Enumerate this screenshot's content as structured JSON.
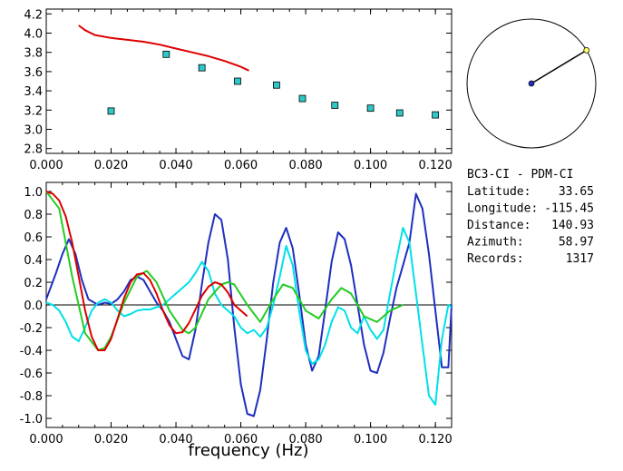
{
  "chart_data": [
    {
      "type": "scatter",
      "panel": "top",
      "xlim": [
        0.0,
        0.125
      ],
      "ylim": [
        2.75,
        4.25
      ],
      "x_ticks": [
        "0.000",
        "0.020",
        "0.040",
        "0.060",
        "0.080",
        "0.100",
        "0.120"
      ],
      "y_ticks": [
        "2.8",
        "3.0",
        "3.2",
        "3.4",
        "3.6",
        "3.8",
        "4.0",
        "4.2"
      ],
      "grid": false,
      "series": [
        {
          "type": "line",
          "color": "#dd0000",
          "x": [
            0.01,
            0.012,
            0.015,
            0.02,
            0.025,
            0.03,
            0.035,
            0.04,
            0.045,
            0.05,
            0.055,
            0.06,
            0.0625
          ],
          "y": [
            4.08,
            4.03,
            3.98,
            3.95,
            3.93,
            3.91,
            3.88,
            3.84,
            3.8,
            3.76,
            3.71,
            3.65,
            3.61
          ]
        },
        {
          "type": "scatter",
          "color": "#2ec8c8",
          "x": [
            0.02,
            0.037,
            0.048,
            0.059,
            0.071,
            0.079,
            0.089,
            0.1,
            0.109,
            0.12
          ],
          "y": [
            3.19,
            3.78,
            3.64,
            3.5,
            3.46,
            3.32,
            3.25,
            3.22,
            3.17,
            3.15
          ]
        }
      ]
    },
    {
      "type": "line",
      "panel": "bottom",
      "xlim": [
        0.0,
        0.125
      ],
      "ylim": [
        -1.08,
        1.08
      ],
      "x_ticks": [
        "0.000",
        "0.020",
        "0.040",
        "0.060",
        "0.080",
        "0.100",
        "0.120"
      ],
      "y_ticks": [
        "-1.0",
        "-0.8",
        "-0.6",
        "-0.4",
        "-0.2",
        "0.0",
        "0.2",
        "0.4",
        "0.6",
        "0.8",
        "1.0"
      ],
      "xlabel": "frequency (Hz)",
      "zero_line": true,
      "grid": false,
      "series": [
        {
          "color": "#1f2fbf",
          "x": [
            0.0,
            0.003,
            0.005,
            0.007,
            0.009,
            0.011,
            0.013,
            0.016,
            0.018,
            0.02,
            0.022,
            0.024,
            0.026,
            0.028,
            0.03,
            0.032,
            0.034,
            0.036,
            0.038,
            0.04,
            0.042,
            0.044,
            0.046,
            0.048,
            0.05,
            0.052,
            0.054,
            0.056,
            0.058,
            0.06,
            0.062,
            0.064,
            0.066,
            0.068,
            0.07,
            0.072,
            0.074,
            0.076,
            0.078,
            0.08,
            0.082,
            0.084,
            0.086,
            0.088,
            0.09,
            0.092,
            0.094,
            0.096,
            0.098,
            0.1,
            0.102,
            0.104,
            0.106,
            0.108,
            0.11,
            0.112,
            0.114,
            0.116,
            0.118,
            0.12,
            0.122,
            0.124,
            0.125
          ],
          "y": [
            0.05,
            0.28,
            0.45,
            0.58,
            0.45,
            0.22,
            0.05,
            0.0,
            0.02,
            0.01,
            0.05,
            0.12,
            0.22,
            0.25,
            0.22,
            0.12,
            0.02,
            -0.05,
            -0.15,
            -0.3,
            -0.45,
            -0.48,
            -0.22,
            0.18,
            0.55,
            0.8,
            0.75,
            0.4,
            -0.2,
            -0.7,
            -0.96,
            -0.98,
            -0.75,
            -0.3,
            0.2,
            0.55,
            0.68,
            0.5,
            0.1,
            -0.35,
            -0.58,
            -0.45,
            -0.05,
            0.38,
            0.64,
            0.58,
            0.35,
            0.0,
            -0.35,
            -0.58,
            -0.6,
            -0.42,
            -0.12,
            0.15,
            0.35,
            0.55,
            0.98,
            0.85,
            0.45,
            -0.05,
            -0.55,
            -0.55,
            0.0
          ]
        },
        {
          "color": "#00e0e8",
          "x": [
            0.0,
            0.002,
            0.004,
            0.006,
            0.008,
            0.01,
            0.012,
            0.014,
            0.016,
            0.018,
            0.02,
            0.022,
            0.024,
            0.026,
            0.028,
            0.03,
            0.032,
            0.034,
            0.036,
            0.038,
            0.04,
            0.042,
            0.044,
            0.046,
            0.048,
            0.05,
            0.052,
            0.054,
            0.056,
            0.058,
            0.06,
            0.062,
            0.064,
            0.066,
            0.068,
            0.07,
            0.072,
            0.074,
            0.076,
            0.078,
            0.08,
            0.082,
            0.084,
            0.086,
            0.088,
            0.09,
            0.092,
            0.094,
            0.096,
            0.098,
            0.1,
            0.102,
            0.104,
            0.106,
            0.108,
            0.11,
            0.112,
            0.114,
            0.116,
            0.118,
            0.12,
            0.122,
            0.124,
            0.125
          ],
          "y": [
            0.02,
            0.0,
            -0.05,
            -0.15,
            -0.28,
            -0.32,
            -0.2,
            -0.05,
            0.02,
            0.05,
            0.02,
            -0.05,
            -0.1,
            -0.08,
            -0.05,
            -0.04,
            -0.04,
            -0.02,
            0.0,
            0.05,
            0.1,
            0.15,
            0.2,
            0.28,
            0.38,
            0.3,
            0.1,
            0.0,
            -0.05,
            -0.1,
            -0.2,
            -0.25,
            -0.22,
            -0.28,
            -0.2,
            0.0,
            0.25,
            0.52,
            0.35,
            -0.05,
            -0.4,
            -0.52,
            -0.48,
            -0.35,
            -0.15,
            -0.02,
            -0.05,
            -0.2,
            -0.25,
            -0.1,
            -0.22,
            -0.3,
            -0.22,
            0.1,
            0.4,
            0.68,
            0.55,
            0.1,
            -0.35,
            -0.8,
            -0.88,
            -0.3,
            0.0,
            -0.02
          ]
        },
        {
          "color": "#22cc22",
          "x": [
            0.0,
            0.004,
            0.008,
            0.012,
            0.016,
            0.018,
            0.02,
            0.024,
            0.028,
            0.031,
            0.034,
            0.038,
            0.042,
            0.044,
            0.046,
            0.05,
            0.054,
            0.056,
            0.058,
            0.062,
            0.066,
            0.07,
            0.073,
            0.076,
            0.08,
            0.084,
            0.088,
            0.091,
            0.094,
            0.098,
            0.102,
            0.106,
            0.11
          ],
          "y": [
            1.0,
            0.85,
            0.25,
            -0.25,
            -0.4,
            -0.38,
            -0.28,
            0.02,
            0.25,
            0.3,
            0.2,
            -0.05,
            -0.22,
            -0.25,
            -0.2,
            0.05,
            0.18,
            0.2,
            0.18,
            0.0,
            -0.15,
            0.05,
            0.18,
            0.15,
            -0.05,
            -0.12,
            0.05,
            0.15,
            0.1,
            -0.1,
            -0.15,
            -0.05,
            0.0
          ]
        },
        {
          "color": "#dd0000",
          "x": [
            0.0,
            0.002,
            0.004,
            0.006,
            0.008,
            0.01,
            0.012,
            0.014,
            0.016,
            0.018,
            0.02,
            0.022,
            0.024,
            0.026,
            0.028,
            0.03,
            0.032,
            0.034,
            0.036,
            0.038,
            0.04,
            0.042,
            0.044,
            0.046,
            0.048,
            0.05,
            0.052,
            0.054,
            0.056,
            0.058,
            0.06,
            0.062
          ],
          "y": [
            1.0,
            0.98,
            0.92,
            0.78,
            0.55,
            0.25,
            -0.05,
            -0.28,
            -0.4,
            -0.4,
            -0.3,
            -0.12,
            0.06,
            0.2,
            0.27,
            0.28,
            0.22,
            0.1,
            -0.05,
            -0.18,
            -0.25,
            -0.24,
            -0.16,
            -0.04,
            0.08,
            0.16,
            0.2,
            0.18,
            0.11,
            0.0,
            -0.05,
            -0.1
          ]
        }
      ]
    }
  ],
  "station_map": {
    "station_color": "#1f2fbf",
    "event_color": "#ffff66",
    "azimuth_deg": 58.97
  },
  "info": {
    "pair": "BC3-CI  -  PDM-CI",
    "rows": [
      {
        "label": "Latitude:",
        "value": "33.65"
      },
      {
        "label": "Longitude:",
        "value": "-115.45"
      },
      {
        "label": "Distance:",
        "value": "140.93"
      },
      {
        "label": "Azimuth:",
        "value": "58.97"
      },
      {
        "label": "Records:",
        "value": "1317"
      }
    ]
  }
}
